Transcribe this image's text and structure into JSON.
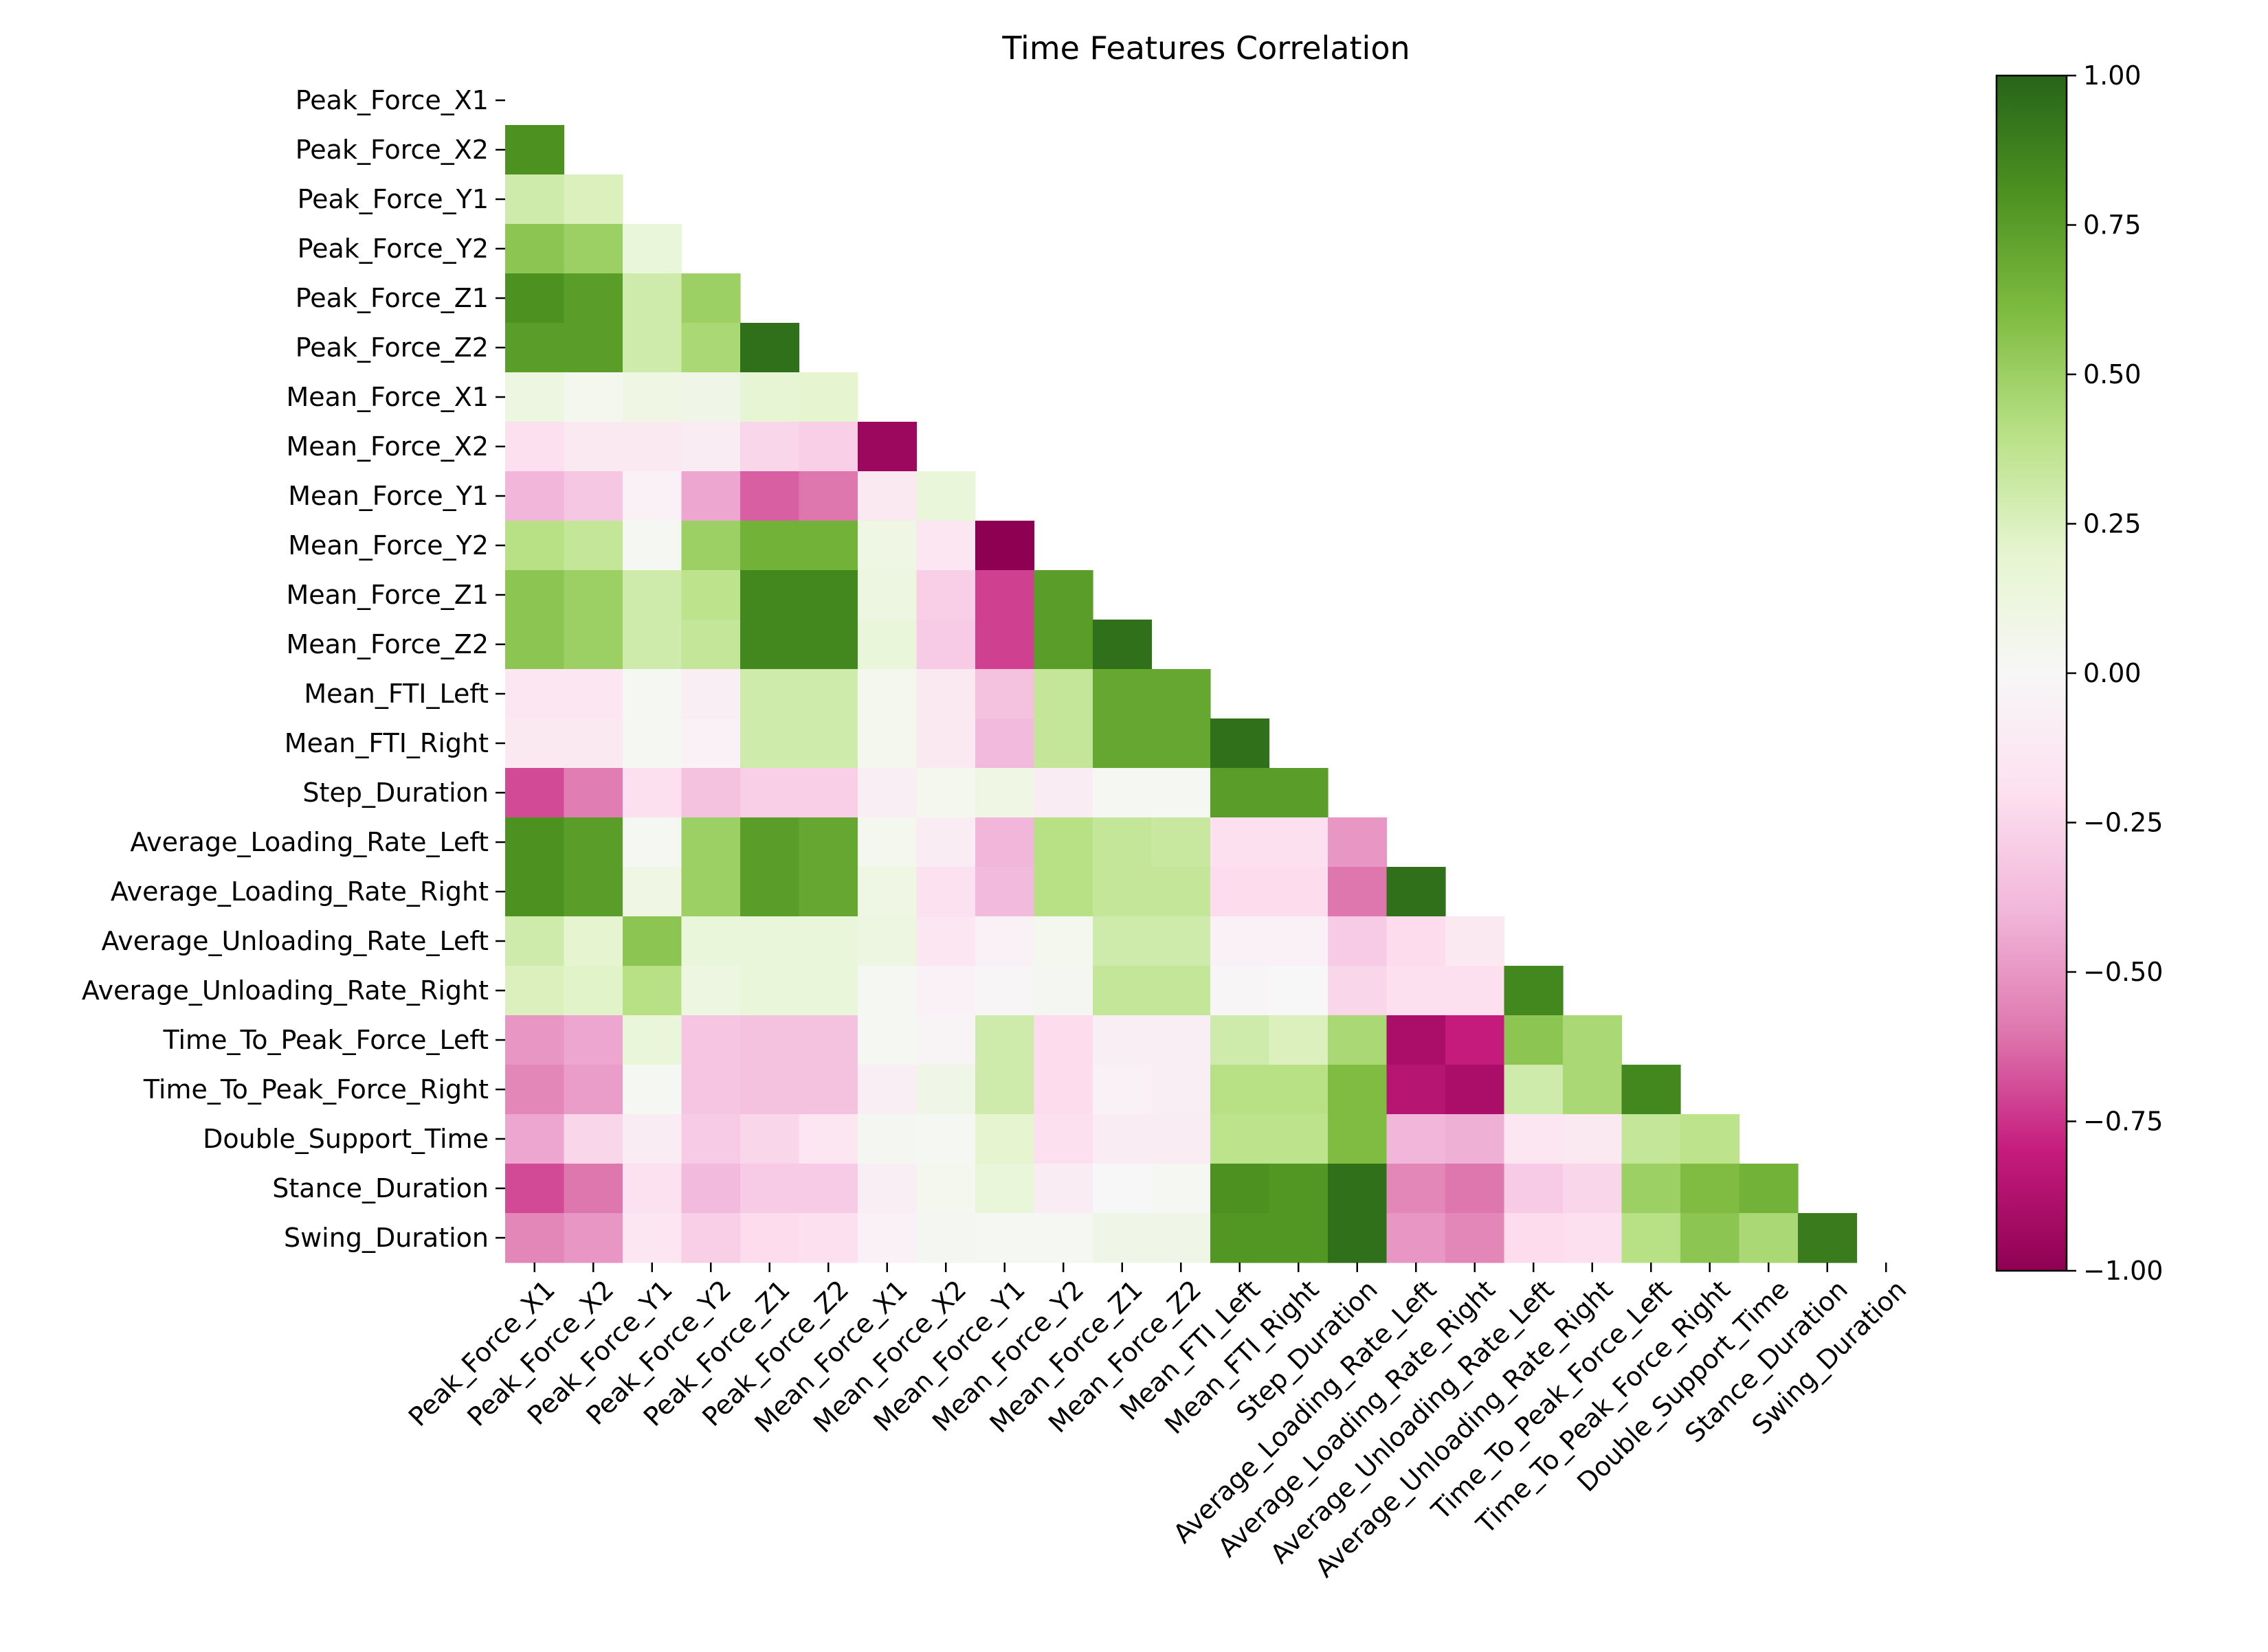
{
  "chart_data": {
    "type": "heatmap",
    "title": "Time Features Correlation",
    "xlabel": "",
    "ylabel": "",
    "mask": "upper-triangle-including-diagonal",
    "labels": [
      "Peak_Force_X1",
      "Peak_Force_X2",
      "Peak_Force_Y1",
      "Peak_Force_Y2",
      "Peak_Force_Z1",
      "Peak_Force_Z2",
      "Mean_Force_X1",
      "Mean_Force_X2",
      "Mean_Force_Y1",
      "Mean_Force_Y2",
      "Mean_Force_Z1",
      "Mean_Force_Z2",
      "Mean_FTI_Left",
      "Mean_FTI_Right",
      "Step_Duration",
      "Average_Loading_Rate_Left",
      "Average_Loading_Rate_Right",
      "Average_Unloading_Rate_Left",
      "Average_Unloading_Rate_Right",
      "Time_To_Peak_Force_Left",
      "Time_To_Peak_Force_Right",
      "Double_Support_Time",
      "Stance_Duration",
      "Swing_Duration"
    ],
    "values": [
      [],
      [
        0.8
      ],
      [
        0.3,
        0.25
      ],
      [
        0.55,
        0.5,
        0.15
      ],
      [
        0.8,
        0.75,
        0.3,
        0.5
      ],
      [
        0.75,
        0.75,
        0.3,
        0.45,
        0.95
      ],
      [
        0.12,
        0.05,
        0.1,
        0.08,
        0.18,
        0.2
      ],
      [
        -0.2,
        -0.12,
        -0.12,
        -0.1,
        -0.25,
        -0.28,
        -0.95
      ],
      [
        -0.4,
        -0.32,
        -0.05,
        -0.45,
        -0.65,
        -0.6,
        -0.12,
        0.15
      ],
      [
        0.4,
        0.35,
        0.02,
        0.5,
        0.65,
        0.65,
        0.1,
        -0.15,
        -1.0
      ],
      [
        0.55,
        0.5,
        0.3,
        0.38,
        0.85,
        0.85,
        0.12,
        -0.28,
        -0.72,
        0.75
      ],
      [
        0.55,
        0.5,
        0.3,
        0.35,
        0.85,
        0.85,
        0.15,
        -0.3,
        -0.72,
        0.75,
        0.95
      ],
      [
        -0.15,
        -0.15,
        0.02,
        -0.08,
        0.3,
        0.3,
        0.05,
        -0.12,
        -0.35,
        0.35,
        0.7,
        0.7
      ],
      [
        -0.12,
        -0.12,
        0.02,
        -0.05,
        0.3,
        0.3,
        0.05,
        -0.12,
        -0.38,
        0.35,
        0.7,
        0.7,
        0.95
      ],
      [
        -0.7,
        -0.58,
        -0.2,
        -0.35,
        -0.28,
        -0.28,
        -0.08,
        0.05,
        0.1,
        -0.1,
        0.02,
        0.02,
        0.75,
        0.75
      ],
      [
        0.8,
        0.75,
        0.02,
        0.5,
        0.75,
        0.7,
        0.05,
        -0.1,
        -0.4,
        0.4,
        0.35,
        0.33,
        -0.2,
        -0.2,
        -0.5
      ],
      [
        0.8,
        0.75,
        0.1,
        0.5,
        0.75,
        0.7,
        0.1,
        -0.18,
        -0.38,
        0.4,
        0.35,
        0.35,
        -0.22,
        -0.22,
        -0.6,
        0.95
      ],
      [
        0.3,
        0.2,
        0.55,
        0.15,
        0.15,
        0.15,
        0.12,
        -0.15,
        -0.05,
        0.05,
        0.3,
        0.3,
        -0.05,
        -0.05,
        -0.3,
        -0.22,
        -0.12
      ],
      [
        0.25,
        0.22,
        0.4,
        0.12,
        0.15,
        0.15,
        0.02,
        -0.05,
        -0.02,
        0.03,
        0.35,
        0.35,
        -0.02,
        0.0,
        -0.25,
        -0.2,
        -0.2,
        0.85
      ],
      [
        -0.5,
        -0.45,
        0.15,
        -0.33,
        -0.35,
        -0.35,
        0.02,
        -0.03,
        0.3,
        -0.22,
        -0.08,
        -0.08,
        0.3,
        0.25,
        0.45,
        -0.9,
        -0.8,
        0.55,
        0.45
      ],
      [
        -0.55,
        -0.48,
        0.02,
        -0.33,
        -0.35,
        -0.35,
        -0.08,
        0.08,
        0.3,
        -0.22,
        -0.05,
        -0.08,
        0.4,
        0.4,
        0.6,
        -0.85,
        -0.9,
        0.3,
        0.45,
        0.85
      ],
      [
        -0.45,
        -0.25,
        -0.1,
        -0.3,
        -0.25,
        -0.15,
        0.03,
        0.02,
        0.2,
        -0.2,
        -0.1,
        -0.1,
        0.38,
        0.38,
        0.6,
        -0.4,
        -0.42,
        -0.15,
        -0.12,
        0.35,
        0.38
      ],
      [
        -0.7,
        -0.6,
        -0.18,
        -0.38,
        -0.3,
        -0.3,
        -0.08,
        0.05,
        0.15,
        -0.1,
        0.0,
        0.02,
        0.8,
        0.78,
        0.95,
        -0.55,
        -0.6,
        -0.3,
        -0.25,
        0.5,
        0.6,
        0.65
      ],
      [
        -0.55,
        -0.5,
        -0.15,
        -0.28,
        -0.22,
        -0.2,
        -0.05,
        0.03,
        0.02,
        0.02,
        0.08,
        0.08,
        0.78,
        0.78,
        0.95,
        -0.5,
        -0.55,
        -0.22,
        -0.2,
        0.4,
        0.55,
        0.45,
        0.9
      ]
    ],
    "vmin": -1.0,
    "vmax": 1.0,
    "colormap": "PiYG",
    "colorbar_ticks": [
      "1.00",
      "0.75",
      "0.50",
      "0.25",
      "0.00",
      "−0.25",
      "−0.50",
      "−0.75",
      "−1.00"
    ],
    "colorbar_tick_values": [
      1.0,
      0.75,
      0.5,
      0.25,
      0.0,
      -0.25,
      -0.5,
      -0.75,
      -1.0
    ],
    "grid": false,
    "legend": "colorbar-right"
  }
}
